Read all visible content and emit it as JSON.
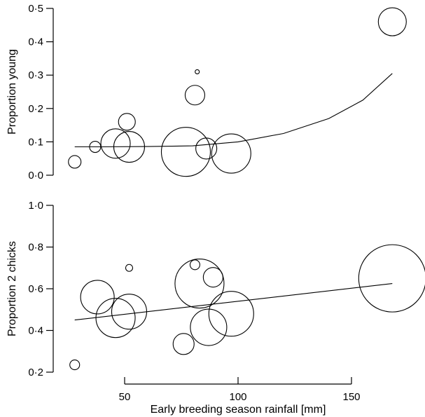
{
  "chart_data": [
    {
      "type": "scatter",
      "ylabel": "Proportion young",
      "ylim": [
        0,
        0.5
      ],
      "yticks": [
        0,
        0.1,
        0.2,
        0.3,
        0.4,
        0.5
      ],
      "ytick_labels": [
        "0·0",
        "0·1",
        "0·2",
        "0·3",
        "0·4",
        "0·5"
      ],
      "xlim": [
        25,
        170
      ],
      "points": [
        {
          "x": 28,
          "y": 0.04,
          "size": 9
        },
        {
          "x": 37,
          "y": 0.085,
          "size": 8
        },
        {
          "x": 46,
          "y": 0.095,
          "size": 21
        },
        {
          "x": 51,
          "y": 0.16,
          "size": 12
        },
        {
          "x": 52,
          "y": 0.085,
          "size": 22
        },
        {
          "x": 77,
          "y": 0.07,
          "size": 35
        },
        {
          "x": 81,
          "y": 0.24,
          "size": 14
        },
        {
          "x": 82,
          "y": 0.31,
          "size": 3
        },
        {
          "x": 86,
          "y": 0.08,
          "size": 15
        },
        {
          "x": 97,
          "y": 0.065,
          "size": 28
        },
        {
          "x": 168,
          "y": 0.46,
          "size": 20
        }
      ],
      "fit_line": {
        "x": [
          28,
          40,
          60,
          80,
          100,
          120,
          140,
          155,
          168
        ],
        "y": [
          0.085,
          0.085,
          0.086,
          0.088,
          0.1,
          0.125,
          0.17,
          0.225,
          0.305
        ]
      }
    },
    {
      "type": "scatter",
      "ylabel": "Proportion 2 chicks",
      "ylim": [
        0.2,
        1.0
      ],
      "yticks": [
        0.2,
        0.4,
        0.6,
        0.8,
        1.0
      ],
      "ytick_labels": [
        "0·2",
        "0·4",
        "0·6",
        "0·8",
        "1·0"
      ],
      "xlim": [
        25,
        170
      ],
      "xlabel": "Early breeding season rainfall [mm]",
      "xticks": [
        50,
        100,
        150
      ],
      "xtick_labels": [
        "50",
        "100",
        "150"
      ],
      "points": [
        {
          "x": 28,
          "y": 0.235,
          "size": 7
        },
        {
          "x": 38,
          "y": 0.56,
          "size": 24
        },
        {
          "x": 46,
          "y": 0.46,
          "size": 28
        },
        {
          "x": 52,
          "y": 0.49,
          "size": 25
        },
        {
          "x": 52,
          "y": 0.7,
          "size": 5
        },
        {
          "x": 76,
          "y": 0.335,
          "size": 15
        },
        {
          "x": 81,
          "y": 0.715,
          "size": 7
        },
        {
          "x": 83,
          "y": 0.625,
          "size": 35
        },
        {
          "x": 87,
          "y": 0.415,
          "size": 26
        },
        {
          "x": 89,
          "y": 0.655,
          "size": 14
        },
        {
          "x": 97,
          "y": 0.48,
          "size": 32
        },
        {
          "x": 168,
          "y": 0.65,
          "size": 48
        }
      ],
      "fit_line": {
        "x": [
          28,
          168
        ],
        "y": [
          0.45,
          0.625
        ]
      }
    }
  ]
}
